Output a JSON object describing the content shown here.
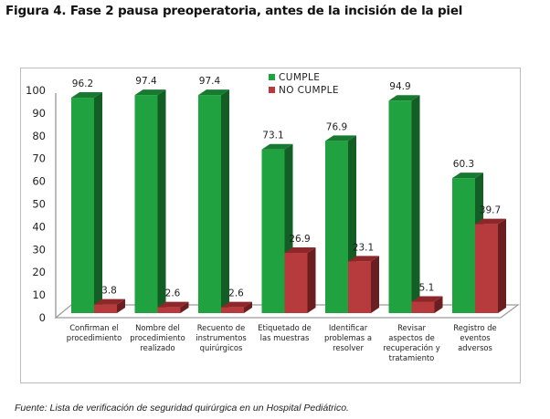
{
  "figure": {
    "title": "Figura 4. Fase 2 pausa preoperatoria, antes de la incisión de la piel",
    "source": "Fuente: Lista de verificación de seguridad quirúrgica en un Hospital Pediátrico."
  },
  "chart_data": {
    "type": "bar",
    "style": "3d-clustered-column",
    "title": "Figura 4. Fase 2 pausa preoperatoria, antes de la incisión de la piel",
    "xlabel": "",
    "ylabel": "",
    "ylim": [
      0,
      100
    ],
    "yticks": [
      0,
      10,
      20,
      30,
      40,
      50,
      60,
      70,
      80,
      90,
      100
    ],
    "grid": false,
    "legend_position": "top-center",
    "categories": [
      [
        "Confirman el",
        "procedimiento"
      ],
      [
        "Nombre del",
        "procedimiento",
        "realizado"
      ],
      [
        "Recuento de",
        "instrumentos",
        "quirúrgicos"
      ],
      [
        "Etiquetado de",
        "las muestras"
      ],
      [
        "Identificar",
        "problemas a",
        "resolver"
      ],
      [
        "Revisar",
        "aspectos de",
        "recuperación y",
        "tratamiento"
      ],
      [
        "Registro de",
        "eventos",
        "adversos"
      ]
    ],
    "series": [
      {
        "name": "CUMPLE",
        "color": "#1fa23f",
        "side_color": "#125e25",
        "top_color": "#187a31",
        "values": [
          96.2,
          97.4,
          97.4,
          73.1,
          76.9,
          94.9,
          60.3
        ],
        "labels": [
          "96.2",
          "97.4",
          "97.4",
          "73.1",
          "76.9",
          "94.9",
          "60.3"
        ]
      },
      {
        "name": "NO CUMPLE",
        "color": "#b73a3c",
        "side_color": "#6a1e20",
        "top_color": "#8e2729",
        "values": [
          3.8,
          2.6,
          2.6,
          26.9,
          23.1,
          5.1,
          39.7
        ],
        "labels": [
          "3.8",
          "2.6",
          "2.6",
          "26.9",
          "23.1",
          "5.1",
          "39.7"
        ]
      }
    ]
  }
}
